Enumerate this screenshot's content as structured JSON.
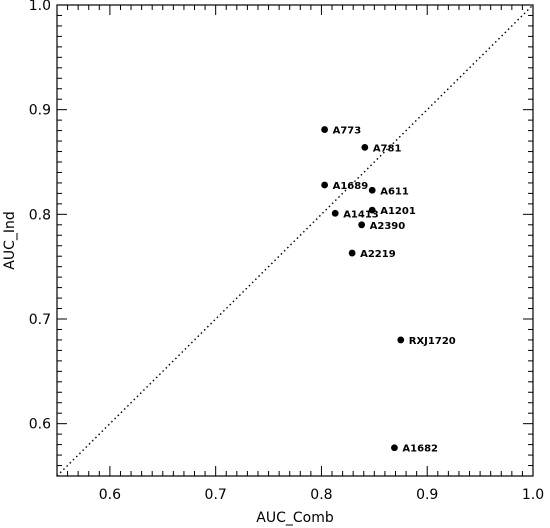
{
  "chart_data": {
    "type": "scatter",
    "xlabel": "AUC_Comb",
    "ylabel": "AUC_Ind",
    "xlim": [
      0.55,
      1.0
    ],
    "ylim": [
      0.55,
      1.0
    ],
    "xticks": [
      0.6,
      0.7,
      0.8,
      0.9,
      1.0
    ],
    "yticks": [
      0.6,
      0.7,
      0.8,
      0.9,
      1.0
    ],
    "xtick_labels": [
      "0.6",
      "0.7",
      "0.8",
      "0.9",
      "1.0"
    ],
    "ytick_labels": [
      "0.6",
      "0.7",
      "0.8",
      "0.9",
      "1.0"
    ],
    "reference_line": {
      "style": "dotted",
      "from": [
        0.55,
        0.55
      ],
      "to": [
        1.0,
        1.0
      ]
    },
    "points": [
      {
        "label": "A773",
        "x": 0.803,
        "y": 0.881
      },
      {
        "label": "A781",
        "x": 0.841,
        "y": 0.864
      },
      {
        "label": "A1689",
        "x": 0.803,
        "y": 0.828
      },
      {
        "label": "A611",
        "x": 0.848,
        "y": 0.823
      },
      {
        "label": "A1413",
        "x": 0.813,
        "y": 0.801
      },
      {
        "label": "A1201",
        "x": 0.848,
        "y": 0.804
      },
      {
        "label": "A2390",
        "x": 0.838,
        "y": 0.79
      },
      {
        "label": "A2219",
        "x": 0.829,
        "y": 0.763
      },
      {
        "label": "RXJ1720",
        "x": 0.875,
        "y": 0.68
      },
      {
        "label": "A1682",
        "x": 0.869,
        "y": 0.577
      }
    ]
  }
}
